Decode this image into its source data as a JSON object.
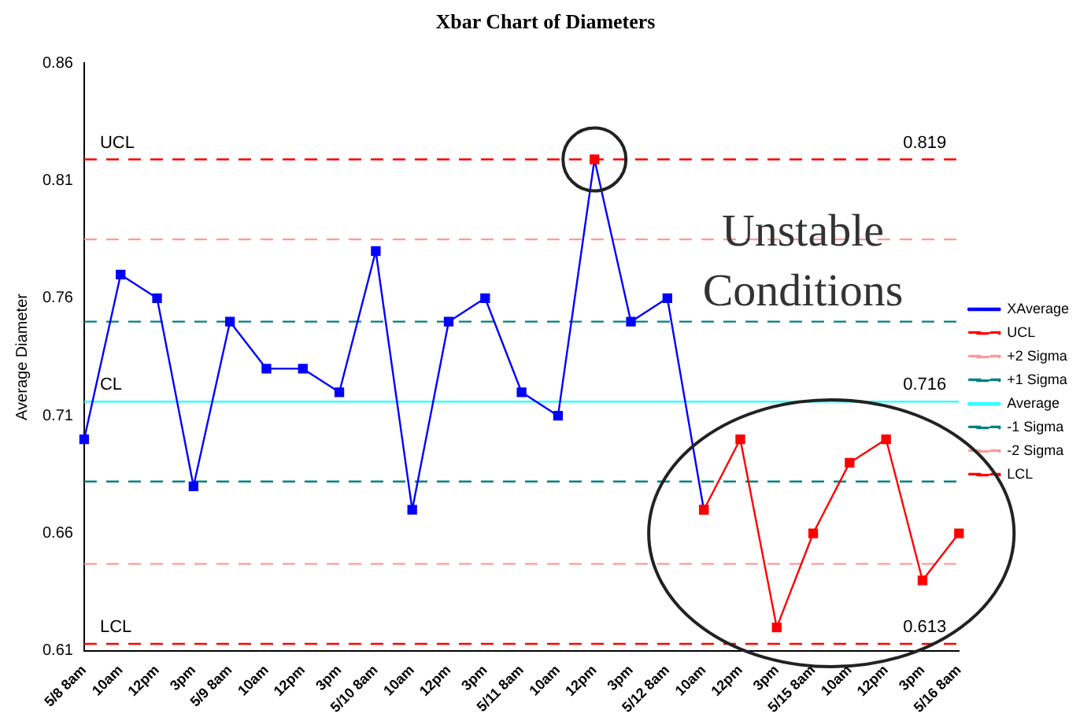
{
  "chart_data": {
    "type": "line",
    "title": "Xbar Chart of Diameters",
    "ylabel": "Average Diameter",
    "categories": [
      "5/8 8am",
      "10am",
      "12pm",
      "3pm",
      "5/9 8am",
      "10am",
      "12pm",
      "3pm",
      "5/10 8am",
      "10am",
      "12pm",
      "3pm",
      "5/11 8am",
      "10am",
      "12pm",
      "3pm",
      "5/12 8am",
      "10am",
      "12pm",
      "3pm",
      "5/15 8am",
      "10am",
      "12pm",
      "3pm",
      "5/16 8am"
    ],
    "series": [
      {
        "name": "XAverage",
        "color": "#0000ff",
        "marker": "square",
        "line_style": "solid",
        "values": [
          0.7,
          0.77,
          0.76,
          0.68,
          0.75,
          0.73,
          0.73,
          0.72,
          0.78,
          0.67,
          0.75,
          0.76,
          0.72,
          0.71,
          0.819,
          0.75,
          0.76,
          0.67,
          null,
          null,
          null,
          null,
          null,
          null,
          null
        ],
        "colors": [
          "#0000ff",
          "#0000ff",
          "#0000ff",
          "#0000ff",
          "#0000ff",
          "#0000ff",
          "#0000ff",
          "#0000ff",
          "#0000ff",
          "#0000ff",
          "#0000ff",
          "#0000ff",
          "#0000ff",
          "#0000ff",
          "#ff0000",
          "#0000ff",
          "#0000ff",
          "#ff0000",
          null,
          null,
          null,
          null,
          null,
          null,
          null
        ]
      },
      {
        "color": "#ff0000",
        "marker": "square",
        "line_style": "solid",
        "values": [
          null,
          null,
          null,
          null,
          null,
          null,
          null,
          null,
          null,
          null,
          null,
          null,
          null,
          null,
          null,
          null,
          null,
          0.67,
          0.7,
          0.62,
          0.66,
          0.69,
          0.7,
          0.64,
          0.66
        ]
      },
      {
        "name": "UCL",
        "color": "#ff0000",
        "marker": "none",
        "line_style": "dashed",
        "values": [
          0.819,
          0.819,
          0.819,
          0.819,
          0.819,
          0.819,
          0.819,
          0.819,
          0.819,
          0.819,
          0.819,
          0.819,
          0.819,
          0.819,
          0.819,
          0.819,
          0.819,
          0.819,
          0.819,
          0.819,
          0.819,
          0.819,
          0.819,
          0.819,
          0.819
        ]
      },
      {
        "name": "+2 Sigma",
        "color": "#ff9999",
        "marker": "none",
        "line_style": "dashed",
        "values": [
          0.785,
          0.785,
          0.785,
          0.785,
          0.785,
          0.785,
          0.785,
          0.785,
          0.785,
          0.785,
          0.785,
          0.785,
          0.785,
          0.785,
          0.785,
          0.785,
          0.785,
          0.785,
          0.785,
          0.785,
          0.785,
          0.785,
          0.785,
          0.785,
          0.785
        ]
      },
      {
        "name": "+1 Sigma",
        "color": "#008080",
        "marker": "none",
        "line_style": "dashed",
        "values": [
          0.75,
          0.75,
          0.75,
          0.75,
          0.75,
          0.75,
          0.75,
          0.75,
          0.75,
          0.75,
          0.75,
          0.75,
          0.75,
          0.75,
          0.75,
          0.75,
          0.75,
          0.75,
          0.75,
          0.75,
          0.75,
          0.75,
          0.75,
          0.75,
          0.75
        ]
      },
      {
        "name": "Average",
        "color": "#33ffff",
        "marker": "none",
        "line_style": "solid",
        "values": [
          0.716,
          0.716,
          0.716,
          0.716,
          0.716,
          0.716,
          0.716,
          0.716,
          0.716,
          0.716,
          0.716,
          0.716,
          0.716,
          0.716,
          0.716,
          0.716,
          0.716,
          0.716,
          0.716,
          0.716,
          0.716,
          0.716,
          0.716,
          0.716,
          0.716
        ]
      },
      {
        "name": "-1 Sigma",
        "color": "#008080",
        "marker": "none",
        "line_style": "dashed",
        "values": [
          0.682,
          0.682,
          0.682,
          0.682,
          0.682,
          0.682,
          0.682,
          0.682,
          0.682,
          0.682,
          0.682,
          0.682,
          0.682,
          0.682,
          0.682,
          0.682,
          0.682,
          0.682,
          0.682,
          0.682,
          0.682,
          0.682,
          0.682,
          0.682,
          0.682
        ]
      },
      {
        "name": "-2 Sigma",
        "color": "#ff9999",
        "marker": "none",
        "line_style": "dashed",
        "values": [
          0.647,
          0.647,
          0.647,
          0.647,
          0.647,
          0.647,
          0.647,
          0.647,
          0.647,
          0.647,
          0.647,
          0.647,
          0.647,
          0.647,
          0.647,
          0.647,
          0.647,
          0.647,
          0.647,
          0.647,
          0.647,
          0.647,
          0.647,
          0.647,
          0.647
        ]
      },
      {
        "name": "LCL",
        "color": "#ff0000",
        "marker": "none",
        "line_style": "dashed",
        "values": [
          0.613,
          0.613,
          0.613,
          0.613,
          0.613,
          0.613,
          0.613,
          0.613,
          0.613,
          0.613,
          0.613,
          0.613,
          0.613,
          0.613,
          0.613,
          0.613,
          0.613,
          0.613,
          0.613,
          0.613,
          0.613,
          0.613,
          0.613,
          0.613,
          0.613
        ]
      }
    ],
    "ylim": [
      0.61,
      0.86
    ],
    "yticks": [
      0.61,
      0.66,
      0.71,
      0.76,
      0.81,
      0.86
    ],
    "grid": false,
    "legend": "right",
    "annotations": [
      {
        "text": "UCL",
        "x": "5/8 8am",
        "y": 0.819
      },
      {
        "text": "CL",
        "x": "5/8 8am",
        "y": 0.716
      },
      {
        "text": "LCL",
        "x": "5/8 8am",
        "y": 0.613
      },
      {
        "text": "0.819",
        "x": "5/16 8am",
        "y": 0.819
      },
      {
        "text": "0.716",
        "x": "5/16 8am",
        "y": 0.716
      },
      {
        "text": "0.613",
        "x": "5/16 8am",
        "y": 0.613
      },
      "Unstable Conditions"
    ]
  }
}
